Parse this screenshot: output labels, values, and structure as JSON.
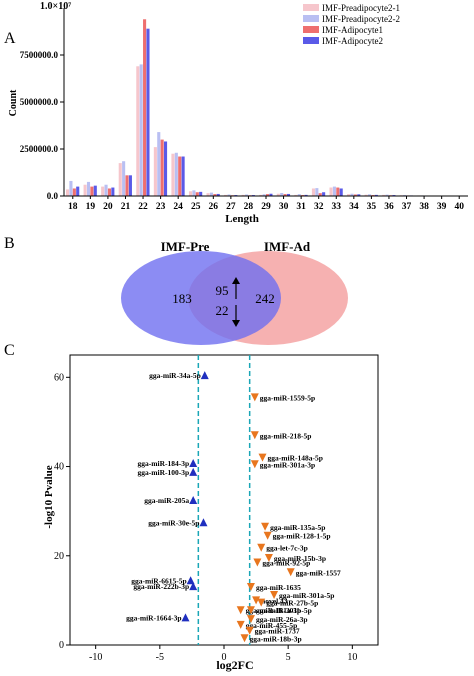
{
  "panels": {
    "a": "A",
    "b": "B",
    "c": "C"
  },
  "chart_a": {
    "type": "bar",
    "ylabel": "Count",
    "xlabel": "Length",
    "y_exponent_label": "1.0×10⁷",
    "y_ticks": [
      "0.0",
      "2500000.0",
      "5000000.0",
      "7500000.0"
    ],
    "ylim": [
      0,
      10000000
    ],
    "categories": [
      "18",
      "19",
      "20",
      "21",
      "22",
      "23",
      "24",
      "25",
      "26",
      "27",
      "28",
      "29",
      "30",
      "31",
      "32",
      "33",
      "34",
      "35",
      "36",
      "37",
      "38",
      "39",
      "40"
    ],
    "series": [
      {
        "name": "IMF-Preadipocyte2-1",
        "color": "#f6c6cc",
        "values": [
          350000,
          600000,
          500000,
          1750000,
          6900000,
          2600000,
          2250000,
          250000,
          150000,
          60000,
          60000,
          60000,
          120000,
          60000,
          400000,
          450000,
          100000,
          70000,
          60000,
          40000,
          30000,
          20000,
          15000
        ]
      },
      {
        "name": "IMF-Preadipocyte2-2",
        "color": "#b9bff2",
        "values": [
          800000,
          750000,
          600000,
          1850000,
          7000000,
          3400000,
          2300000,
          300000,
          180000,
          80000,
          80000,
          90000,
          160000,
          100000,
          420000,
          500000,
          120000,
          90000,
          70000,
          50000,
          30000,
          25000,
          20000
        ]
      },
      {
        "name": "IMF-Adipocyte1",
        "color": "#ee6f6f",
        "values": [
          400000,
          500000,
          400000,
          1100000,
          9400000,
          3000000,
          2100000,
          200000,
          100000,
          40000,
          40000,
          100000,
          100000,
          50000,
          150000,
          450000,
          80000,
          50000,
          40000,
          30000,
          20000,
          15000,
          10000
        ]
      },
      {
        "name": "IMF-Adipocyte2",
        "color": "#5a5ae8",
        "values": [
          500000,
          550000,
          450000,
          1100000,
          8900000,
          2900000,
          2100000,
          220000,
          110000,
          50000,
          50000,
          120000,
          110000,
          60000,
          200000,
          400000,
          90000,
          60000,
          50000,
          30000,
          20000,
          15000,
          10000
        ]
      }
    ]
  },
  "venn": {
    "left_title": "IMF-Pre",
    "right_title": "IMF-Ad",
    "left_only": "183",
    "overlap_up": "95",
    "overlap_down": "22",
    "right_only": "242",
    "left_color": "#6f6ff0",
    "right_color": "#f5a3a3"
  },
  "chart_c": {
    "type": "scatter",
    "xlabel": "log2FC",
    "ylabel": "-log10 Pvalue",
    "xlim": [
      -12,
      12
    ],
    "ylim": [
      0,
      65
    ],
    "x_ticks": [
      -10,
      -5,
      0,
      5,
      10
    ],
    "y_ticks": [
      0,
      20,
      40,
      60
    ],
    "threshold_x": [
      -2,
      2
    ],
    "down_color": "#1f2fbf",
    "up_color": "#e8761e",
    "points": [
      {
        "label": "gga-miR-34a-5p",
        "x": -1.5,
        "y": 60.5,
        "dir": "down"
      },
      {
        "label": "gga-miR-1559-5p",
        "x": 2.4,
        "y": 55.5,
        "dir": "up"
      },
      {
        "label": "gga-miR-218-5p",
        "x": 2.4,
        "y": 47.0,
        "dir": "up"
      },
      {
        "label": "gga-miR-148a-5p",
        "x": 3.0,
        "y": 42.0,
        "dir": "up"
      },
      {
        "label": "gga-miR-184-3p",
        "x": -2.4,
        "y": 40.8,
        "dir": "down"
      },
      {
        "label": "gga-miR-301a-3p",
        "x": 2.4,
        "y": 40.5,
        "dir": "up"
      },
      {
        "label": "gga-miR-100-3p",
        "x": -2.4,
        "y": 38.8,
        "dir": "down"
      },
      {
        "label": "gga-miR-205a",
        "x": -2.4,
        "y": 32.5,
        "dir": "down"
      },
      {
        "label": "gga-miR-30e-5p",
        "x": -1.6,
        "y": 27.5,
        "dir": "down"
      },
      {
        "label": "gga-miR-135a-5p",
        "x": 3.2,
        "y": 26.5,
        "dir": "up"
      },
      {
        "label": "gga-miR-128-1-5p",
        "x": 3.4,
        "y": 24.5,
        "dir": "up"
      },
      {
        "label": "gga-let-7c-3p",
        "x": 2.9,
        "y": 21.8,
        "dir": "up"
      },
      {
        "label": "gga-miR-15b-3p",
        "x": 3.5,
        "y": 19.5,
        "dir": "up"
      },
      {
        "label": "gga-miR-92-5p",
        "x": 2.6,
        "y": 18.5,
        "dir": "up"
      },
      {
        "label": "gga-miR-1557",
        "x": 5.2,
        "y": 16.3,
        "dir": "up"
      },
      {
        "label": "gga-miR-6615-5p",
        "x": -2.6,
        "y": 14.5,
        "dir": "down"
      },
      {
        "label": "gga-miR-1635",
        "x": 2.1,
        "y": 13.0,
        "dir": "up"
      },
      {
        "label": "gga-miR-222b-3p",
        "x": -2.4,
        "y": 13.2,
        "dir": "down"
      },
      {
        "label": "gga-miR-301a-5p",
        "x": 3.9,
        "y": 11.2,
        "dir": "up"
      },
      {
        "label": "novel.43",
        "x": 2.5,
        "y": 10.0,
        "dir": "up"
      },
      {
        "label": "gga-miR-27b-5p",
        "x": 2.9,
        "y": 9.5,
        "dir": "up"
      },
      {
        "label": "gga-miR-181a-3p",
        "x": 1.3,
        "y": 7.8,
        "dir": "up"
      },
      {
        "label": "gga-miR-301b-5p",
        "x": 2.1,
        "y": 7.8,
        "dir": "up"
      },
      {
        "label": "gga-miR-1664-3p",
        "x": -3.0,
        "y": 6.2,
        "dir": "down"
      },
      {
        "label": "gga-miR-26a-3p",
        "x": 2.1,
        "y": 5.8,
        "dir": "up"
      },
      {
        "label": "gga-miR-455-5p",
        "x": 1.3,
        "y": 4.5,
        "dir": "up"
      },
      {
        "label": "gga-miR-1737",
        "x": 2.0,
        "y": 3.2,
        "dir": "up"
      },
      {
        "label": "gga-miR-18b-3p",
        "x": 1.6,
        "y": 1.5,
        "dir": "up"
      }
    ]
  }
}
